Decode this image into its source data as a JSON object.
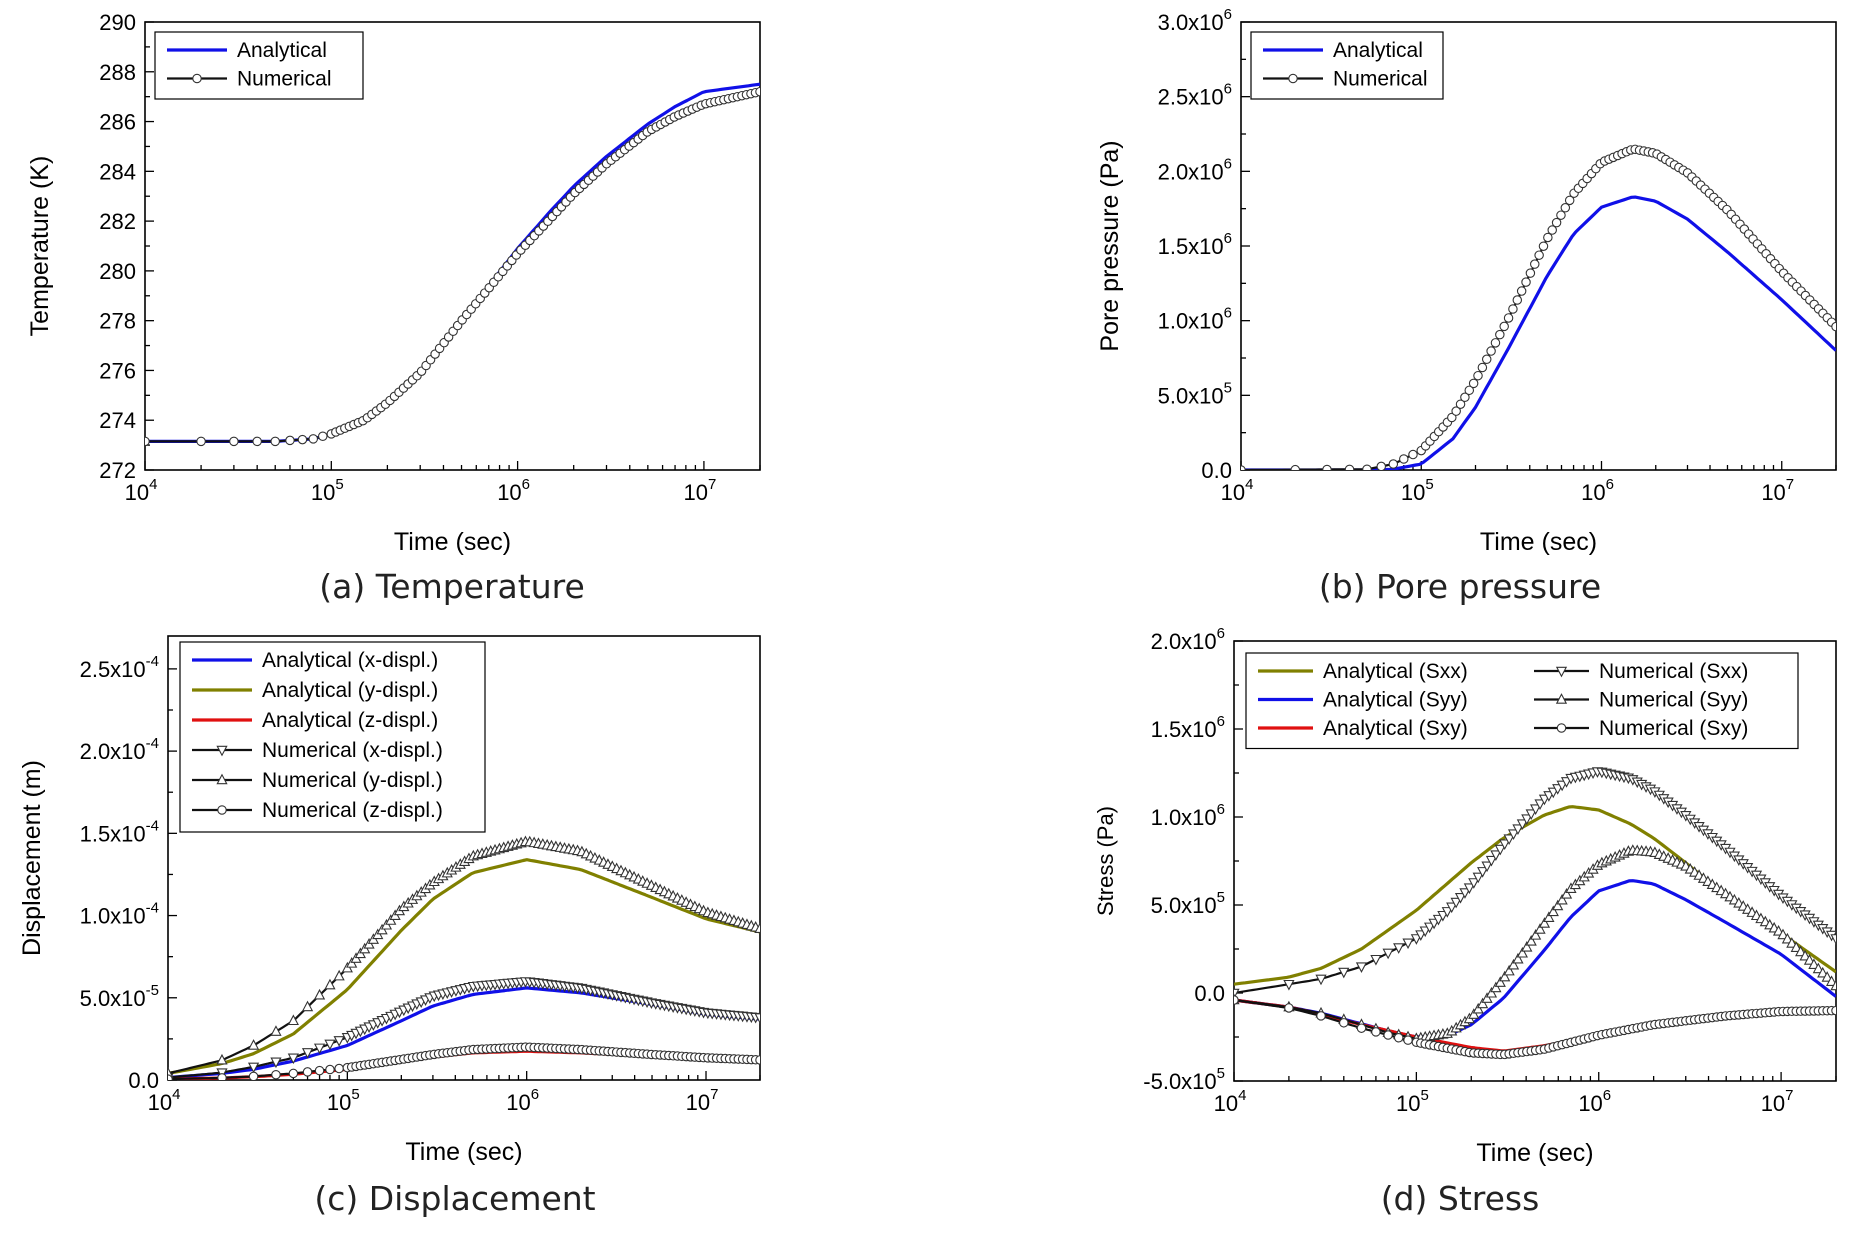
{
  "chart_data": [
    {
      "type": "line",
      "caption": "(a) Temperature",
      "xlabel": "Time (sec)",
      "ylabel": "Temperature (K)",
      "xscale": "log",
      "xlim": [
        10000,
        20000000
      ],
      "ylim": [
        272,
        290
      ],
      "xticks": [
        {
          "base": "10",
          "exp": "4"
        },
        {
          "base": "10",
          "exp": "5"
        },
        {
          "base": "10",
          "exp": "6"
        },
        {
          "base": "10",
          "exp": "7"
        }
      ],
      "yticks": [
        {
          "v": 272,
          "label": "272"
        },
        {
          "v": 274,
          "label": "274"
        },
        {
          "v": 276,
          "label": "276"
        },
        {
          "v": 278,
          "label": "278"
        },
        {
          "v": 280,
          "label": "280"
        },
        {
          "v": 282,
          "label": "282"
        },
        {
          "v": 284,
          "label": "284"
        },
        {
          "v": 286,
          "label": "286"
        },
        {
          "v": 288,
          "label": "288"
        },
        {
          "v": 290,
          "label": "290"
        }
      ],
      "legend_position": "top-left",
      "legend_columns": 1,
      "series": [
        {
          "name": "Analytical",
          "style": "solid",
          "color": "#1010e8",
          "x": [
            10000,
            50000,
            80000,
            100000,
            150000,
            200000,
            300000,
            500000,
            700000,
            1000000,
            1500000,
            2000000,
            3000000,
            5000000,
            7000000,
            10000000,
            20000000
          ],
          "y": [
            273.15,
            273.15,
            273.25,
            273.45,
            274.0,
            274.7,
            275.9,
            278.0,
            279.4,
            280.9,
            282.4,
            283.4,
            284.6,
            285.9,
            286.6,
            287.2,
            287.5
          ]
        },
        {
          "name": "Numerical",
          "style": "markers",
          "color": "#111111",
          "marker": "circle",
          "x": [
            10000,
            50000,
            80000,
            100000,
            150000,
            200000,
            300000,
            500000,
            700000,
            1000000,
            1500000,
            2000000,
            3000000,
            5000000,
            7000000,
            10000000,
            20000000
          ],
          "y": [
            273.15,
            273.15,
            273.25,
            273.45,
            274.0,
            274.7,
            275.9,
            278.0,
            279.3,
            280.7,
            282.1,
            283.1,
            284.3,
            285.6,
            286.2,
            286.7,
            287.2
          ]
        }
      ]
    },
    {
      "type": "line",
      "caption": "(b) Pore pressure",
      "xlabel": "Time (sec)",
      "ylabel": "Pore pressure (Pa)",
      "xscale": "log",
      "xlim": [
        10000,
        20000000
      ],
      "ylim": [
        0,
        3000000
      ],
      "xticks": [
        {
          "base": "10",
          "exp": "4"
        },
        {
          "base": "10",
          "exp": "5"
        },
        {
          "base": "10",
          "exp": "6"
        },
        {
          "base": "10",
          "exp": "7"
        }
      ],
      "yticks": [
        {
          "v": 0,
          "label": "0.0"
        },
        {
          "v": 500000,
          "label": "5.0x10",
          "exp": "5"
        },
        {
          "v": 1000000,
          "label": "1.0x10",
          "exp": "6"
        },
        {
          "v": 1500000,
          "label": "1.5x10",
          "exp": "6"
        },
        {
          "v": 2000000,
          "label": "2.0x10",
          "exp": "6"
        },
        {
          "v": 2500000,
          "label": "2.5x10",
          "exp": "6"
        },
        {
          "v": 3000000,
          "label": "3.0x10",
          "exp": "6"
        }
      ],
      "legend_position": "top-left",
      "legend_columns": 1,
      "series": [
        {
          "name": "Analytical",
          "style": "solid",
          "color": "#1010e8",
          "x": [
            10000,
            50000,
            70000,
            100000,
            150000,
            200000,
            300000,
            500000,
            700000,
            1000000,
            1500000,
            2000000,
            3000000,
            5000000,
            10000000,
            20000000
          ],
          "y": [
            0,
            0,
            5000,
            40000,
            210000,
            420000,
            800000,
            1300000,
            1580000,
            1760000,
            1830000,
            1800000,
            1680000,
            1460000,
            1140000,
            800000
          ]
        },
        {
          "name": "Numerical",
          "style": "markers",
          "color": "#111111",
          "marker": "circle",
          "x": [
            10000,
            50000,
            70000,
            100000,
            150000,
            200000,
            300000,
            500000,
            700000,
            1000000,
            1500000,
            2000000,
            3000000,
            5000000,
            10000000,
            20000000
          ],
          "y": [
            0,
            5000,
            40000,
            130000,
            360000,
            600000,
            1000000,
            1550000,
            1850000,
            2060000,
            2150000,
            2120000,
            1990000,
            1740000,
            1330000,
            960000
          ]
        }
      ]
    },
    {
      "type": "line",
      "caption": "(c) Displacement",
      "xlabel": "Time (sec)",
      "ylabel": "Displacement (m)",
      "xscale": "log",
      "xlim": [
        10000,
        20000000
      ],
      "ylim": [
        0,
        0.00027
      ],
      "xticks": [
        {
          "base": "10",
          "exp": "4"
        },
        {
          "base": "10",
          "exp": "5"
        },
        {
          "base": "10",
          "exp": "6"
        },
        {
          "base": "10",
          "exp": "7"
        }
      ],
      "yticks": [
        {
          "v": 0,
          "label": "0.0"
        },
        {
          "v": 5e-05,
          "label": "5.0x10",
          "exp": "-5"
        },
        {
          "v": 0.0001,
          "label": "1.0x10",
          "exp": "-4"
        },
        {
          "v": 0.00015,
          "label": "1.5x10",
          "exp": "-4"
        },
        {
          "v": 0.0002,
          "label": "2.0x10",
          "exp": "-4"
        },
        {
          "v": 0.00025,
          "label": "2.5x10",
          "exp": "-4"
        }
      ],
      "legend_position": "top-left",
      "legend_columns": 1,
      "series": [
        {
          "name": "Analytical (x-displ.)",
          "style": "solid",
          "color": "#1010e8",
          "x": [
            10000,
            20000,
            30000,
            50000,
            100000,
            200000,
            300000,
            500000,
            1000000,
            2000000,
            5000000,
            10000000,
            20000000
          ],
          "y": [
            1.5e-06,
            4e-06,
            6.5e-06,
            1.15e-05,
            2.1e-05,
            3.6e-05,
            4.5e-05,
            5.2e-05,
            5.6e-05,
            5.3e-05,
            4.6e-05,
            4e-05,
            3.7e-05
          ]
        },
        {
          "name": "Analytical (y-displ.)",
          "style": "solid",
          "color": "#808000",
          "x": [
            10000,
            20000,
            30000,
            50000,
            100000,
            200000,
            300000,
            500000,
            1000000,
            2000000,
            5000000,
            10000000,
            20000000
          ],
          "y": [
            4e-06,
            1e-05,
            1.6e-05,
            2.8e-05,
            5.5e-05,
            9.1e-05,
            0.00011,
            0.000126,
            0.000134,
            0.000128,
            0.000111,
            9.8e-05,
            9e-05
          ]
        },
        {
          "name": "Analytical (z-displ.)",
          "style": "solid",
          "color": "#e01010",
          "x": [
            10000,
            20000,
            30000,
            50000,
            100000,
            200000,
            300000,
            500000,
            1000000,
            2000000,
            5000000,
            10000000,
            20000000
          ],
          "y": [
            5e-07,
            1.2e-06,
            2e-06,
            3.5e-06,
            6.5e-06,
            1.1e-05,
            1.4e-05,
            1.65e-05,
            1.75e-05,
            1.65e-05,
            1.45e-05,
            1.28e-05,
            1.2e-05
          ]
        },
        {
          "name": "Numerical (x-displ.)",
          "style": "markers",
          "color": "#111111",
          "marker": "triangle-down",
          "x": [
            10000,
            20000,
            30000,
            50000,
            100000,
            200000,
            300000,
            500000,
            1000000,
            2000000,
            5000000,
            10000000,
            20000000
          ],
          "y": [
            1.5e-06,
            4.5e-06,
            8e-06,
            1.35e-05,
            2.6e-05,
            4.2e-05,
            5.1e-05,
            5.7e-05,
            6e-05,
            5.6e-05,
            4.7e-05,
            4.1e-05,
            3.8e-05
          ]
        },
        {
          "name": "Numerical (y-displ.)",
          "style": "markers",
          "color": "#111111",
          "marker": "triangle-up",
          "x": [
            10000,
            20000,
            30000,
            50000,
            100000,
            200000,
            300000,
            500000,
            1000000,
            2000000,
            5000000,
            10000000,
            20000000
          ],
          "y": [
            4e-06,
            1.2e-05,
            2.1e-05,
            3.6e-05,
            6.8e-05,
            0.000104,
            0.00012,
            0.000136,
            0.000145,
            0.000139,
            0.000118,
            0.000102,
            9.2e-05
          ]
        },
        {
          "name": "Numerical (z-displ.)",
          "style": "markers",
          "color": "#111111",
          "marker": "circle",
          "x": [
            10000,
            20000,
            30000,
            50000,
            100000,
            200000,
            300000,
            500000,
            1000000,
            2000000,
            5000000,
            10000000,
            20000000
          ],
          "y": [
            5e-07,
            1.3e-06,
            2.2e-06,
            4e-06,
            7.5e-06,
            1.25e-05,
            1.55e-05,
            1.85e-05,
            2e-05,
            1.85e-05,
            1.55e-05,
            1.35e-05,
            1.22e-05
          ]
        }
      ]
    },
    {
      "type": "line",
      "caption": "(d) Stress",
      "xlabel": "Time (sec)",
      "ylabel": "Stress (Pa)",
      "xscale": "log",
      "xlim": [
        10000,
        20000000
      ],
      "ylim": [
        -500000,
        2000000
      ],
      "xticks": [
        {
          "base": "10",
          "exp": "4"
        },
        {
          "base": "10",
          "exp": "5"
        },
        {
          "base": "10",
          "exp": "6"
        },
        {
          "base": "10",
          "exp": "7"
        }
      ],
      "yticks": [
        {
          "v": -500000,
          "label": "-5.0x10",
          "exp": "5"
        },
        {
          "v": 0,
          "label": "0.0"
        },
        {
          "v": 500000,
          "label": "5.0x10",
          "exp": "5"
        },
        {
          "v": 1000000,
          "label": "1.0x10",
          "exp": "6"
        },
        {
          "v": 1500000,
          "label": "1.5x10",
          "exp": "6"
        },
        {
          "v": 2000000,
          "label": "2.0x10",
          "exp": "6"
        }
      ],
      "legend_position": "top-center",
      "legend_columns": 2,
      "series": [
        {
          "name": "Analytical (Sxx)",
          "style": "solid",
          "color": "#808000",
          "x": [
            10000,
            20000,
            30000,
            50000,
            100000,
            200000,
            300000,
            500000,
            700000,
            1000000,
            1500000,
            2000000,
            3000000,
            5000000,
            10000000,
            20000000
          ],
          "y": [
            50000,
            90000,
            140000,
            250000,
            470000,
            740000,
            880000,
            1010000,
            1060000,
            1040000,
            960000,
            880000,
            740000,
            550000,
            340000,
            120000
          ]
        },
        {
          "name": "Analytical (Syy)",
          "style": "solid",
          "color": "#1010e8",
          "x": [
            10000,
            20000,
            30000,
            50000,
            70000,
            100000,
            150000,
            200000,
            300000,
            500000,
            700000,
            1000000,
            1500000,
            2000000,
            3000000,
            5000000,
            10000000,
            20000000
          ],
          "y": [
            -40000,
            -80000,
            -115000,
            -175000,
            -215000,
            -250000,
            -240000,
            -180000,
            -30000,
            240000,
            430000,
            580000,
            640000,
            620000,
            530000,
            400000,
            220000,
            -20000
          ]
        },
        {
          "name": "Analytical (Sxy)",
          "style": "solid",
          "color": "#e01010",
          "x": [
            10000,
            20000,
            30000,
            50000,
            100000,
            200000,
            300000,
            500000,
            1000000,
            2000000,
            5000000,
            10000000,
            20000000
          ],
          "y": [
            -40000,
            -80000,
            -120000,
            -180000,
            -250000,
            -310000,
            -330000,
            -300000,
            -240000,
            -180000,
            -130000,
            -105000,
            -100000
          ]
        },
        {
          "name": "Numerical (Sxx)",
          "style": "markers",
          "color": "#111111",
          "marker": "triangle-down",
          "x": [
            10000,
            20000,
            30000,
            50000,
            100000,
            150000,
            200000,
            300000,
            500000,
            700000,
            1000000,
            1500000,
            2000000,
            3000000,
            5000000,
            10000000,
            20000000
          ],
          "y": [
            0,
            50000,
            80000,
            150000,
            310000,
            470000,
            610000,
            840000,
            1100000,
            1220000,
            1260000,
            1220000,
            1150000,
            1010000,
            820000,
            550000,
            310000
          ]
        },
        {
          "name": "Numerical (Syy)",
          "style": "markers",
          "color": "#111111",
          "marker": "triangle-up",
          "x": [
            10000,
            20000,
            30000,
            50000,
            70000,
            100000,
            150000,
            200000,
            300000,
            500000,
            700000,
            1000000,
            1500000,
            2000000,
            3000000,
            5000000,
            10000000,
            20000000
          ],
          "y": [
            -40000,
            -80000,
            -115000,
            -180000,
            -225000,
            -260000,
            -230000,
            -140000,
            80000,
            390000,
            590000,
            730000,
            810000,
            800000,
            720000,
            560000,
            340000,
            40000
          ]
        },
        {
          "name": "Numerical (Sxy)",
          "style": "markers",
          "color": "#111111",
          "marker": "circle",
          "x": [
            10000,
            20000,
            30000,
            50000,
            100000,
            200000,
            300000,
            500000,
            1000000,
            2000000,
            5000000,
            10000000,
            20000000
          ],
          "y": [
            -40000,
            -85000,
            -130000,
            -200000,
            -280000,
            -340000,
            -350000,
            -320000,
            -240000,
            -180000,
            -130000,
            -105000,
            -100000
          ]
        }
      ]
    }
  ]
}
